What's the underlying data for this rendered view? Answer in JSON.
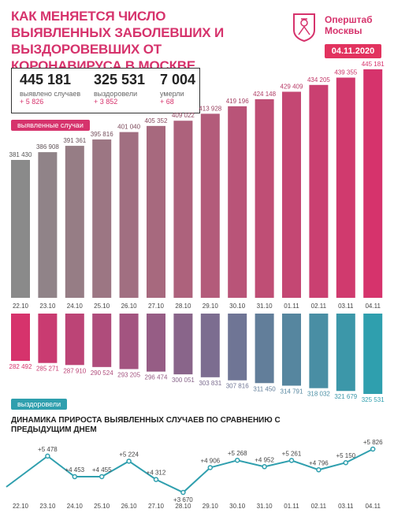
{
  "header": {
    "title": "Как меняется число выявленных заболевших и выздоровевших от коронавируса в Москве",
    "brand_line1": "Оперштаб",
    "brand_line2": "Москвы",
    "date": "04.11.2020"
  },
  "stats": [
    {
      "value": "445 181",
      "label": "выявлено случаев",
      "delta": "+ 5 826"
    },
    {
      "value": "325 531",
      "label": "выздоровели",
      "delta": "+ 3 852"
    },
    {
      "value": "7 004",
      "label": "умерли",
      "delta": "+ 68"
    }
  ],
  "colors": {
    "accent": "#d6336c",
    "teal": "#2f9fae",
    "gray": "#8a8a8a"
  },
  "chart_data": [
    {
      "type": "bar",
      "series_label": "выявленные случаи",
      "categories": [
        "22.10",
        "23.10",
        "24.10",
        "25.10",
        "26.10",
        "27.10",
        "28.10",
        "29.10",
        "30.10",
        "31.10",
        "01.11",
        "02.11",
        "03.11",
        "04.11"
      ],
      "values": [
        381430,
        386908,
        391361,
        395816,
        401040,
        405352,
        409022,
        413928,
        419196,
        424148,
        429409,
        434205,
        439355,
        445181
      ],
      "labels": [
        "381 430",
        "386 908",
        "391 361",
        "395 816",
        "401 040",
        "405 352",
        "409 022",
        "413 928",
        "419 196",
        "424 148",
        "429 409",
        "434 205",
        "439 355",
        "445 181"
      ]
    },
    {
      "type": "bar",
      "series_label": "выздоровели",
      "categories": [
        "22.10",
        "23.10",
        "24.10",
        "25.10",
        "26.10",
        "27.10",
        "28.10",
        "29.10",
        "30.10",
        "31.10",
        "01.11",
        "02.11",
        "03.11",
        "04.11"
      ],
      "values": [
        282492,
        285271,
        287910,
        290524,
        293205,
        296474,
        300051,
        303831,
        307816,
        311450,
        314791,
        318032,
        321679,
        325531
      ],
      "labels": [
        "282 492",
        "285 271",
        "287 910",
        "290 524",
        "293 205",
        "296 474",
        "300 051",
        "303 831",
        "307 816",
        "311 450",
        "314 791",
        "318 032",
        "321 679",
        "325 531"
      ]
    },
    {
      "type": "line",
      "title": "Динамика прироста выявленных случаев по сравнению с предыдущим днем",
      "categories": [
        "22.10",
        "23.10",
        "24.10",
        "25.10",
        "26.10",
        "27.10",
        "28.10",
        "29.10",
        "30.10",
        "31.10",
        "01.11",
        "02.11",
        "03.11",
        "04.11"
      ],
      "values": [
        null,
        5478,
        4453,
        4455,
        5224,
        4312,
        3670,
        4906,
        5268,
        4952,
        5261,
        4796,
        5150,
        5826
      ],
      "labels": [
        "",
        "+5 478",
        "+4 453",
        "+4 455",
        "+5 224",
        "+4 312",
        "+3 670",
        "+4 906",
        "+5 268",
        "+4 952",
        "+5 261",
        "+4 796",
        "+5 150",
        "+5 826"
      ]
    }
  ]
}
